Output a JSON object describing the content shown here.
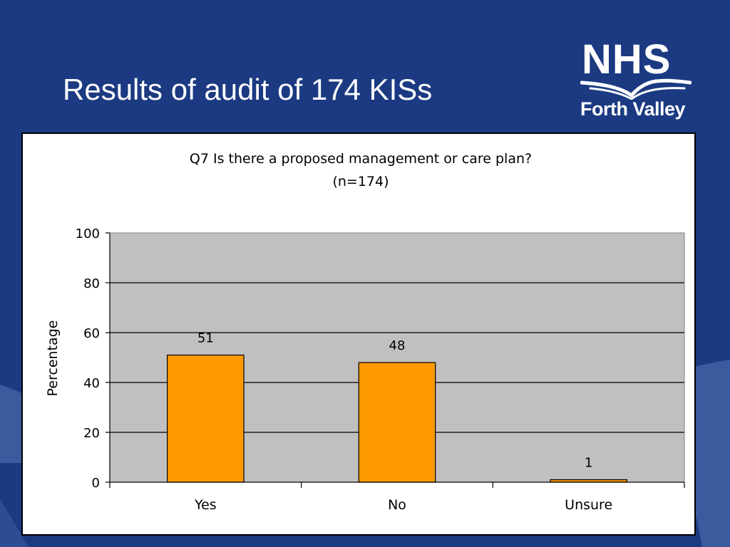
{
  "slide": {
    "title": "Results of audit of 174 KISs"
  },
  "logo": {
    "name": "NHS",
    "subtitle": "Forth Valley"
  },
  "colors": {
    "background": "#1b3a82",
    "bar": "#ff9900",
    "plot_area": "#c0c0c0"
  },
  "chart_data": {
    "type": "bar",
    "title": "Q7 Is there a proposed management or care plan?",
    "subtitle": "(n=174)",
    "categories": [
      "Yes",
      "No",
      "Unsure"
    ],
    "values": [
      51,
      48,
      1
    ],
    "data_labels": [
      "51",
      "48",
      "1"
    ],
    "xlabel": "",
    "ylabel": "Percentage",
    "ylim": [
      0,
      100
    ],
    "yticks": [
      0,
      20,
      40,
      60,
      80,
      100
    ],
    "grid": true,
    "legend": "none"
  }
}
